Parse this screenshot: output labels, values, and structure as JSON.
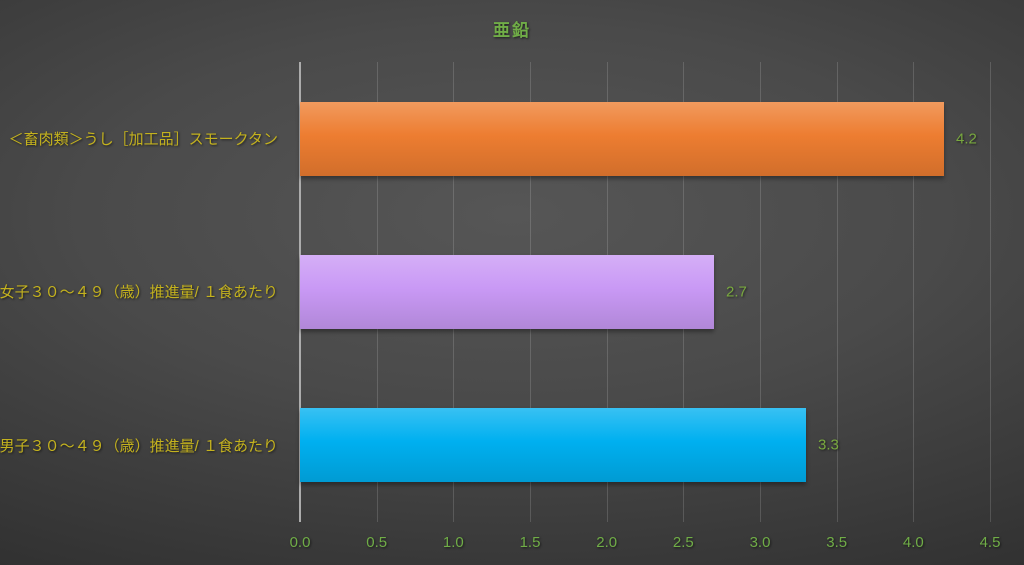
{
  "chart": {
    "title": "亜鉛"
  },
  "chart_data": {
    "type": "bar",
    "orientation": "horizontal",
    "title": "亜鉛",
    "categories": [
      "＜畜肉類＞うし［加工品］スモークタン",
      "女子３０～４９（歳）推進量/ １食あたり",
      "男子３０～４９（歳）推進量/ １食あたり"
    ],
    "values": [
      4.2,
      2.7,
      3.3
    ],
    "value_labels": [
      "4.2",
      "2.7",
      "3.3"
    ],
    "bar_colors": [
      "#ED7D31",
      "#C999F5",
      "#00B0F0"
    ],
    "xlim": [
      0,
      4.5
    ],
    "xticks": [
      "0.0",
      "0.5",
      "1.0",
      "1.5",
      "2.0",
      "2.5",
      "3.0",
      "3.5",
      "4.0",
      "4.5"
    ],
    "grid": true,
    "legend": false
  },
  "style": {
    "title_color": "#70AD47",
    "tick_color": "#70AD47",
    "value_color": "#79A93F",
    "category_color": "#C4B21E",
    "gridline_color": "rgba(255,255,255,0.15)",
    "axis_color": "#ACACAC",
    "background_center": "#565656",
    "background_edge": "#262626"
  }
}
